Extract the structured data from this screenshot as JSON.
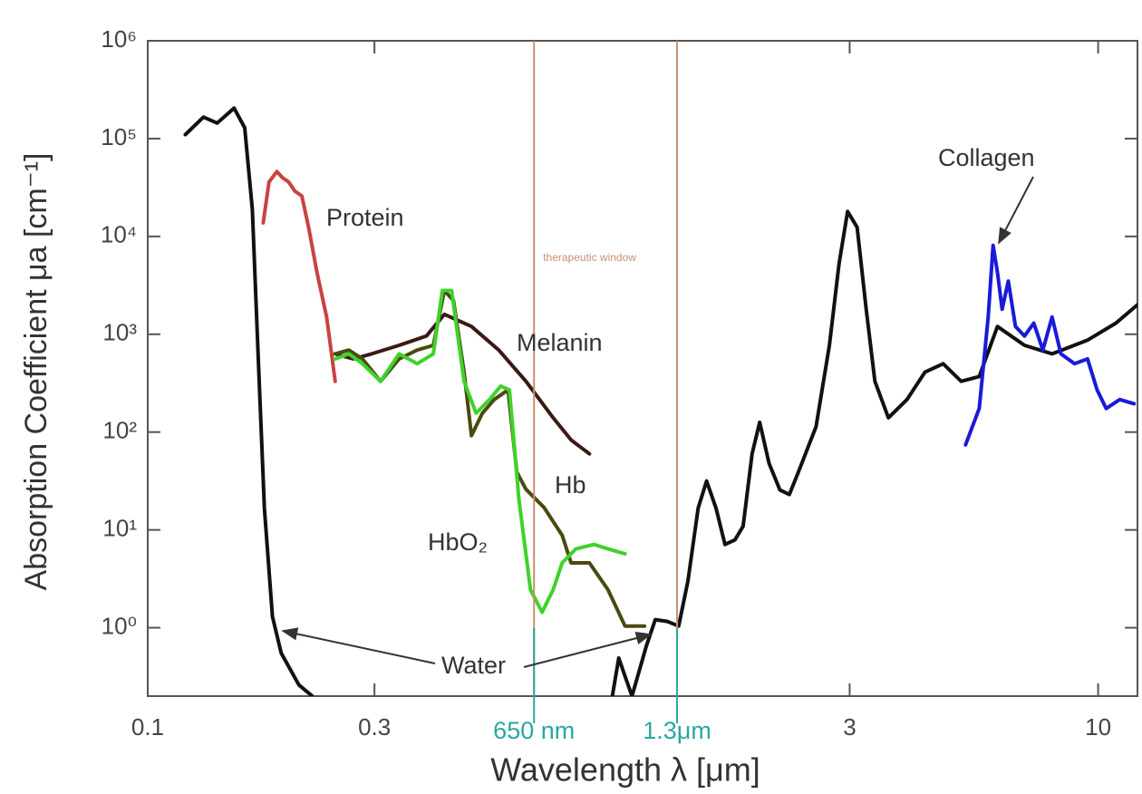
{
  "chart_data": {
    "type": "line",
    "log_x": true,
    "log_y": true,
    "x_label": "Wavelength λ [μm]",
    "y_label": "Absorption Coefficient μa [cm⁻¹]",
    "xlim": [
      0.1,
      12.1
    ],
    "ylim": [
      0.2,
      1000000
    ],
    "xticks": [
      0.1,
      0.3,
      3,
      10
    ],
    "yticks": [
      {
        "value": 1,
        "label": "10⁰"
      },
      {
        "value": 10,
        "label": "10¹"
      },
      {
        "value": 100,
        "label": "10²"
      },
      {
        "value": 1000,
        "label": "10³"
      },
      {
        "value": 10000,
        "label": "10⁴"
      },
      {
        "value": 100000,
        "label": "10⁵"
      },
      {
        "value": 1000000,
        "label": "10⁶"
      }
    ],
    "window": {
      "label": "therapeutic window",
      "color": "#c9906e",
      "lines": [
        {
          "value": 0.65,
          "label": "650 nm"
        },
        {
          "value": 1.3,
          "label": "1.3μm"
        }
      ],
      "label_color": "#2aa7a0"
    },
    "series": [
      {
        "name": "Water",
        "color": "#111111",
        "x": [
          0.12,
          0.131,
          0.14,
          0.152,
          0.16,
          0.166,
          0.171,
          0.176,
          0.183,
          0.191,
          0.208,
          0.222,
          0.5,
          0.95,
          0.98,
          1.01,
          1.045,
          1.12,
          1.17,
          1.24,
          1.31,
          1.37,
          1.44,
          1.5,
          1.57,
          1.64,
          1.72,
          1.79,
          1.87,
          1.94,
          2.03,
          2.14,
          2.24,
          2.34,
          2.55,
          2.72,
          2.85,
          2.97,
          3.11,
          3.25,
          3.39,
          3.62,
          3.96,
          4.32,
          4.72,
          5.15,
          5.62,
          6.14,
          7.0,
          8.0,
          9.5,
          10.9,
          12.1
        ],
        "values": [
          110000,
          166000,
          144000,
          205000,
          129000,
          19000,
          500,
          16.7,
          1.3,
          0.55,
          0.26,
          0.2,
          null,
          0.2,
          0.49,
          0.32,
          0.2,
          0.65,
          1.21,
          1.16,
          1.04,
          3.0,
          16.7,
          31.6,
          16.7,
          7.1,
          7.9,
          10.9,
          60,
          126,
          48,
          25.6,
          23,
          39,
          114,
          770,
          5300,
          18000,
          12400,
          1800,
          330,
          140,
          215,
          410,
          500,
          330,
          370,
          1200,
          770,
          630,
          870,
          1300,
          2000
        ]
      },
      {
        "name": "Protein",
        "color": "#c8433f",
        "x": [
          0.175,
          0.18,
          0.187,
          0.192,
          0.198,
          0.204,
          0.211,
          0.218,
          0.227,
          0.238,
          0.248
        ],
        "values": [
          13800,
          36000,
          46000,
          40000,
          36000,
          29000,
          26000,
          12400,
          4300,
          1500,
          330
        ]
      },
      {
        "name": "Melanin",
        "color": "#3a1a14",
        "x": [
          0.248,
          0.271,
          0.296,
          0.338,
          0.386,
          0.421,
          0.48,
          0.548,
          0.625,
          0.713,
          0.778,
          0.85
        ],
        "values": [
          630,
          560,
          630,
          770,
          960,
          1600,
          1200,
          690,
          330,
          140,
          83,
          60
        ]
      },
      {
        "name": "Hb",
        "color": "#4a4a10",
        "x": [
          0.248,
          0.265,
          0.283,
          0.309,
          0.338,
          0.369,
          0.399,
          0.421,
          0.44,
          0.463,
          0.48,
          0.506,
          0.536,
          0.573,
          0.598,
          0.625,
          0.682,
          0.745,
          0.778,
          0.85,
          0.93,
          1.01,
          1.11
        ],
        "values": [
          630,
          690,
          560,
          330,
          560,
          690,
          770,
          2800,
          2200,
          410,
          92,
          156,
          215,
          270,
          39,
          26,
          17,
          8.8,
          4.6,
          4.6,
          2.45,
          1.04,
          1.04
        ]
      },
      {
        "name": "HbO₂",
        "color": "#3fd22a",
        "x": [
          0.248,
          0.265,
          0.283,
          0.309,
          0.338,
          0.369,
          0.399,
          0.417,
          0.436,
          0.463,
          0.491,
          0.524,
          0.553,
          0.577,
          0.604,
          0.639,
          0.676,
          0.713,
          0.745,
          0.796,
          0.869,
          0.93,
          1.01
        ],
        "values": [
          560,
          630,
          500,
          330,
          630,
          500,
          630,
          2800,
          2800,
          330,
          156,
          215,
          295,
          270,
          20.6,
          2.45,
          1.44,
          2.45,
          4.6,
          6.4,
          7.1,
          6.4,
          5.7
        ]
      },
      {
        "name": "Collagen",
        "color": "#1a1ad8",
        "x": [
          5.26,
          5.62,
          5.87,
          6.01,
          6.14,
          6.28,
          6.47,
          6.7,
          7.0,
          7.32,
          7.65,
          8.0,
          8.35,
          8.92,
          9.5,
          9.95,
          10.4,
          11.1,
          11.9
        ],
        "values": [
          74,
          174,
          1500,
          8100,
          4300,
          1800,
          3500,
          1200,
          960,
          1300,
          690,
          1500,
          630,
          500,
          560,
          270,
          174,
          215,
          195
        ]
      }
    ]
  }
}
